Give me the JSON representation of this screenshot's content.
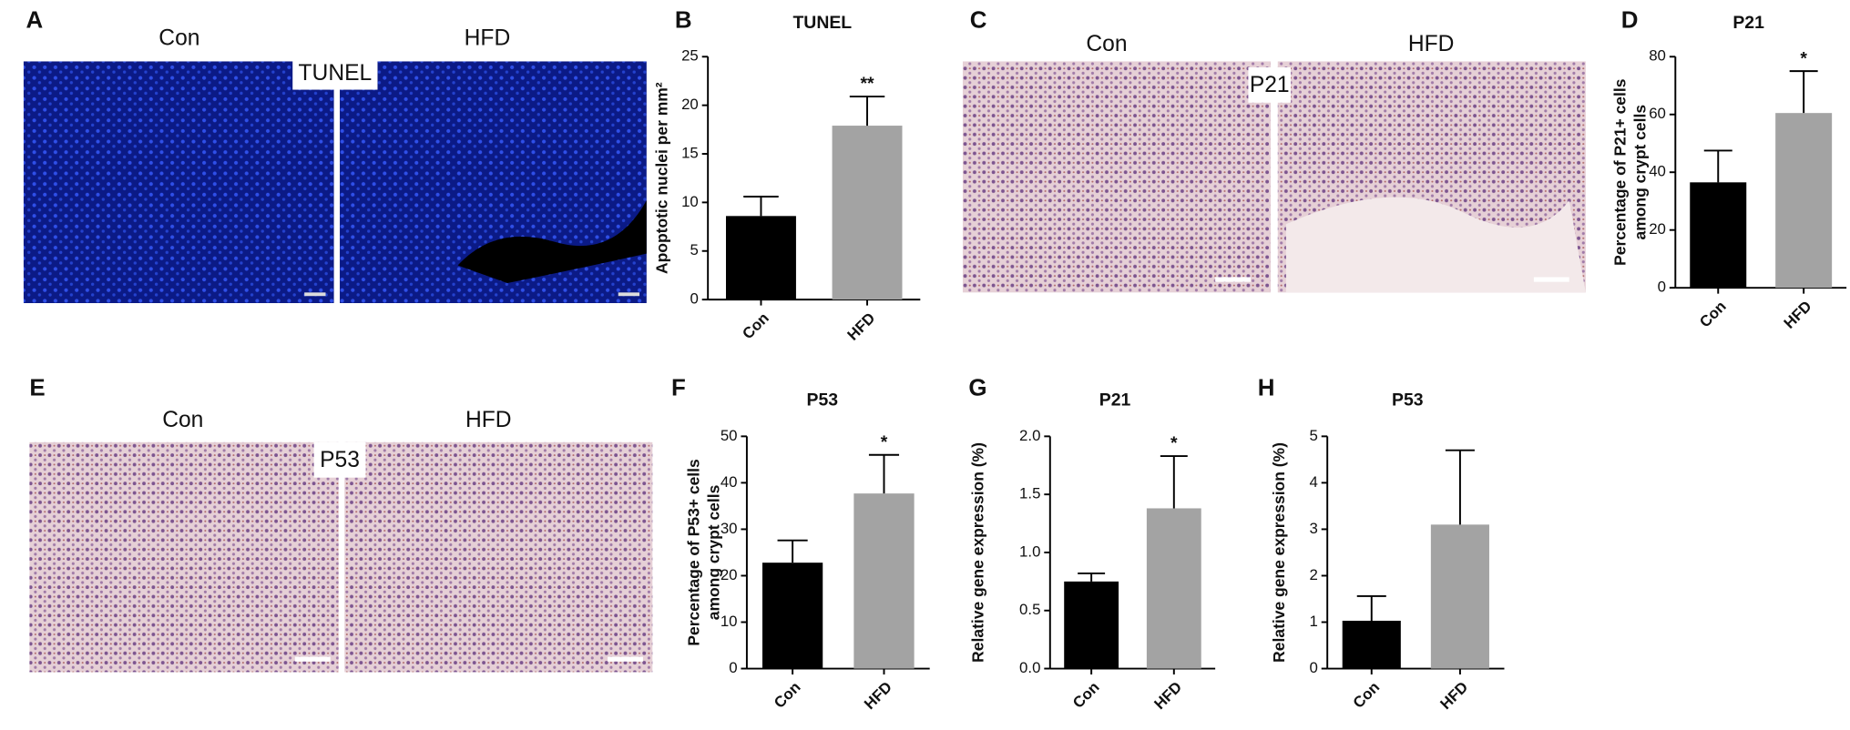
{
  "panels": [
    {
      "letter": "A",
      "labels": [
        "Con",
        "HFD"
      ],
      "stain": "TUNEL"
    },
    {
      "letter": "C",
      "labels": [
        "Con",
        "HFD"
      ],
      "stain": "P21"
    },
    {
      "letter": "E",
      "labels": [
        "Con",
        "HFD"
      ],
      "stain": "P53"
    }
  ],
  "chart_data": [
    {
      "type": "bar",
      "panel": "B",
      "title": "TUNEL",
      "ylabel": "Apoptotic nuclei per mm²",
      "categories": [
        "Con",
        "HFD"
      ],
      "values": [
        8.6,
        17.9
      ],
      "errors": [
        2.0,
        3.0
      ],
      "colors": [
        "#000000",
        "#a3a3a3"
      ],
      "ylim": [
        0,
        25
      ],
      "yticks": [
        0,
        5,
        10,
        15,
        20,
        25
      ],
      "annotations": [
        {
          "category": "HFD",
          "text": "**"
        }
      ]
    },
    {
      "type": "bar",
      "panel": "D",
      "title": "P21",
      "ylabel": [
        "Percentage of P21+ cells",
        "among crypt cells"
      ],
      "categories": [
        "Con",
        "HFD"
      ],
      "values": [
        36.5,
        60.5
      ],
      "errors": [
        11,
        14.5
      ],
      "colors": [
        "#000000",
        "#a3a3a3"
      ],
      "ylim": [
        0,
        80
      ],
      "yticks": [
        0,
        20,
        40,
        60,
        80
      ],
      "annotations": [
        {
          "category": "HFD",
          "text": "*"
        }
      ]
    },
    {
      "type": "bar",
      "panel": "F",
      "title": "P53",
      "ylabel": [
        "Percentage of P53+ cells",
        "among crypt cells"
      ],
      "categories": [
        "Con",
        "HFD"
      ],
      "values": [
        22.8,
        37.7
      ],
      "errors": [
        4.8,
        8.3
      ],
      "colors": [
        "#000000",
        "#a3a3a3"
      ],
      "ylim": [
        0,
        50
      ],
      "yticks": [
        0,
        10,
        20,
        30,
        40,
        50
      ],
      "annotations": [
        {
          "category": "HFD",
          "text": "*"
        }
      ]
    },
    {
      "type": "bar",
      "panel": "G",
      "title": "P21",
      "ylabel": "Relative gene expression (%)",
      "categories": [
        "Con",
        "HFD"
      ],
      "values": [
        0.75,
        1.38
      ],
      "errors": [
        0.07,
        0.45
      ],
      "colors": [
        "#000000",
        "#a3a3a3"
      ],
      "ylim": [
        0,
        2
      ],
      "yticks": [
        {
          "value": 0,
          "label": "0.0"
        },
        0.5,
        {
          "value": 1,
          "label": "1.0"
        },
        1.5,
        {
          "value": 2,
          "label": "2.0"
        }
      ],
      "annotations": [
        {
          "category": "HFD",
          "text": "*"
        }
      ]
    },
    {
      "type": "bar",
      "panel": "H",
      "title": "P53",
      "ylabel": "Relative gene expression (%)",
      "categories": [
        "Con",
        "HFD"
      ],
      "values": [
        1.03,
        3.1
      ],
      "errors": [
        0.53,
        1.6
      ],
      "colors": [
        "#000000",
        "#a3a3a3"
      ],
      "ylim": [
        0,
        5
      ],
      "yticks": [
        0,
        1,
        2,
        3,
        4,
        5
      ]
    }
  ]
}
